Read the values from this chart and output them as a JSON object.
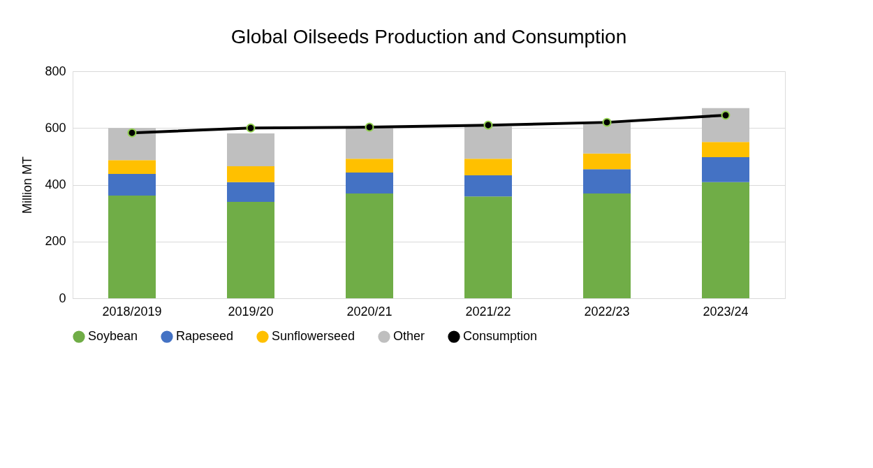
{
  "chart_data": {
    "type": "bar",
    "title": "Global Oilseeds Production and Consumption",
    "ylabel": "Million MT",
    "categories": [
      "2018/2019",
      "2019/20",
      "2020/21",
      "2021/22",
      "2022/23",
      "2023/24"
    ],
    "stacked": true,
    "ylim": [
      0,
      800
    ],
    "yticks": [
      0,
      200,
      400,
      600,
      800
    ],
    "grid": "y",
    "legend": "bottom",
    "series": [
      {
        "name": "Soybean",
        "color": "#70ad47",
        "values": [
          362,
          340,
          369,
          359,
          369,
          409
        ]
      },
      {
        "name": "Rapeseed",
        "color": "#4472c4",
        "values": [
          76,
          69,
          74,
          74,
          86,
          88
        ]
      },
      {
        "name": "Sunflowerseed",
        "color": "#ffc000",
        "values": [
          49,
          56,
          49,
          59,
          55,
          54
        ]
      },
      {
        "name": "Other",
        "color": "#bfbfbf",
        "values": [
          113,
          116,
          111,
          113,
          110,
          119
        ]
      },
      {
        "name": "Consumption",
        "type": "line",
        "color": "#000000",
        "marker": "circle",
        "values": [
          583,
          600,
          603,
          610,
          620,
          645
        ]
      }
    ]
  }
}
